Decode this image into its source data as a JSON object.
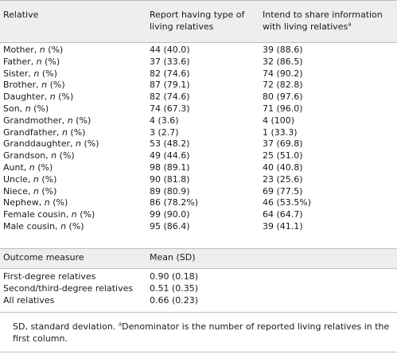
{
  "header": {
    "col1": "Relative",
    "col2_line1": "Report having type of",
    "col2_line2": "living relatives",
    "col3_line1": "Intend to share information",
    "col3_line2": "with living relatives",
    "col3_sup": "a"
  },
  "rows": [
    {
      "name": "Mother, ",
      "n": "n",
      "pct": " (%)",
      "report": "44 (40.0)",
      "share": "39 (88.6)"
    },
    {
      "name": "Father, ",
      "n": "n",
      "pct": " (%)",
      "report": "37 (33.6)",
      "share": "32 (86.5)"
    },
    {
      "name": "Sister, ",
      "n": "n",
      "pct": " (%)",
      "report": "82 (74.6)",
      "share": "74 (90.2)"
    },
    {
      "name": "Brother, ",
      "n": "n",
      "pct": " (%)",
      "report": "87 (79.1)",
      "share": "72 (82.8)"
    },
    {
      "name": "Daughter, ",
      "n": "n",
      "pct": " (%)",
      "report": "82 (74.6)",
      "share": "80 (97.6)"
    },
    {
      "name": "Son, ",
      "n": "n",
      "pct": " (%)",
      "report": "74 (67.3)",
      "share": "71 (96.0)"
    },
    {
      "name": "Grandmother, ",
      "n": "n",
      "pct": " (%)",
      "report": "4 (3.6)",
      "share": "4 (100)"
    },
    {
      "name": "Grandfather, ",
      "n": "n",
      "pct": " (%)",
      "report": "3 (2.7)",
      "share": "1 (33.3)"
    },
    {
      "name": "Granddaughter, ",
      "n": "n",
      "pct": " (%)",
      "report": "53 (48.2)",
      "share": "37 (69.8)"
    },
    {
      "name": "Grandson, ",
      "n": "n",
      "pct": " (%)",
      "report": "49 (44.6)",
      "share": "25 (51.0)"
    },
    {
      "name": "Aunt, ",
      "n": "n",
      "pct": " (%)",
      "report": "98 (89.1)",
      "share": "40 (40.8)"
    },
    {
      "name": "Uncle, ",
      "n": "n",
      "pct": " (%)",
      "report": "90 (81.8)",
      "share": "23 (25.6)"
    },
    {
      "name": "Niece, ",
      "n": "n",
      "pct": " (%)",
      "report": "89 (80.9)",
      "share": "69 (77.5)"
    },
    {
      "name": "Nephew, ",
      "n": "n",
      "pct": " (%)",
      "report": "86 (78.2%)",
      "share": "46 (53.5%)"
    },
    {
      "name": "Female cousin, ",
      "n": "n",
      "pct": " (%)",
      "report": "99 (90.0)",
      "share": "64 (64.7)"
    },
    {
      "name": "Male cousin, ",
      "n": "n",
      "pct": " (%)",
      "report": "95 (86.4)",
      "share": "39 (41.1)"
    }
  ],
  "subheader": {
    "col1": "Outcome measure",
    "col2": "Mean (SD)"
  },
  "outcomes": [
    {
      "label": "First-degree relatives",
      "value": "0.90 (0.18)"
    },
    {
      "label": "Second/third-degree relatives",
      "value": "0.51 (0.35)"
    },
    {
      "label": "All relatives",
      "value": "0.66 (0.23)"
    }
  ],
  "footnote": {
    "part1": "SD, standard deviation. ",
    "sup": "a",
    "part2": "Denominator is the number of reported living relatives in the first column."
  }
}
